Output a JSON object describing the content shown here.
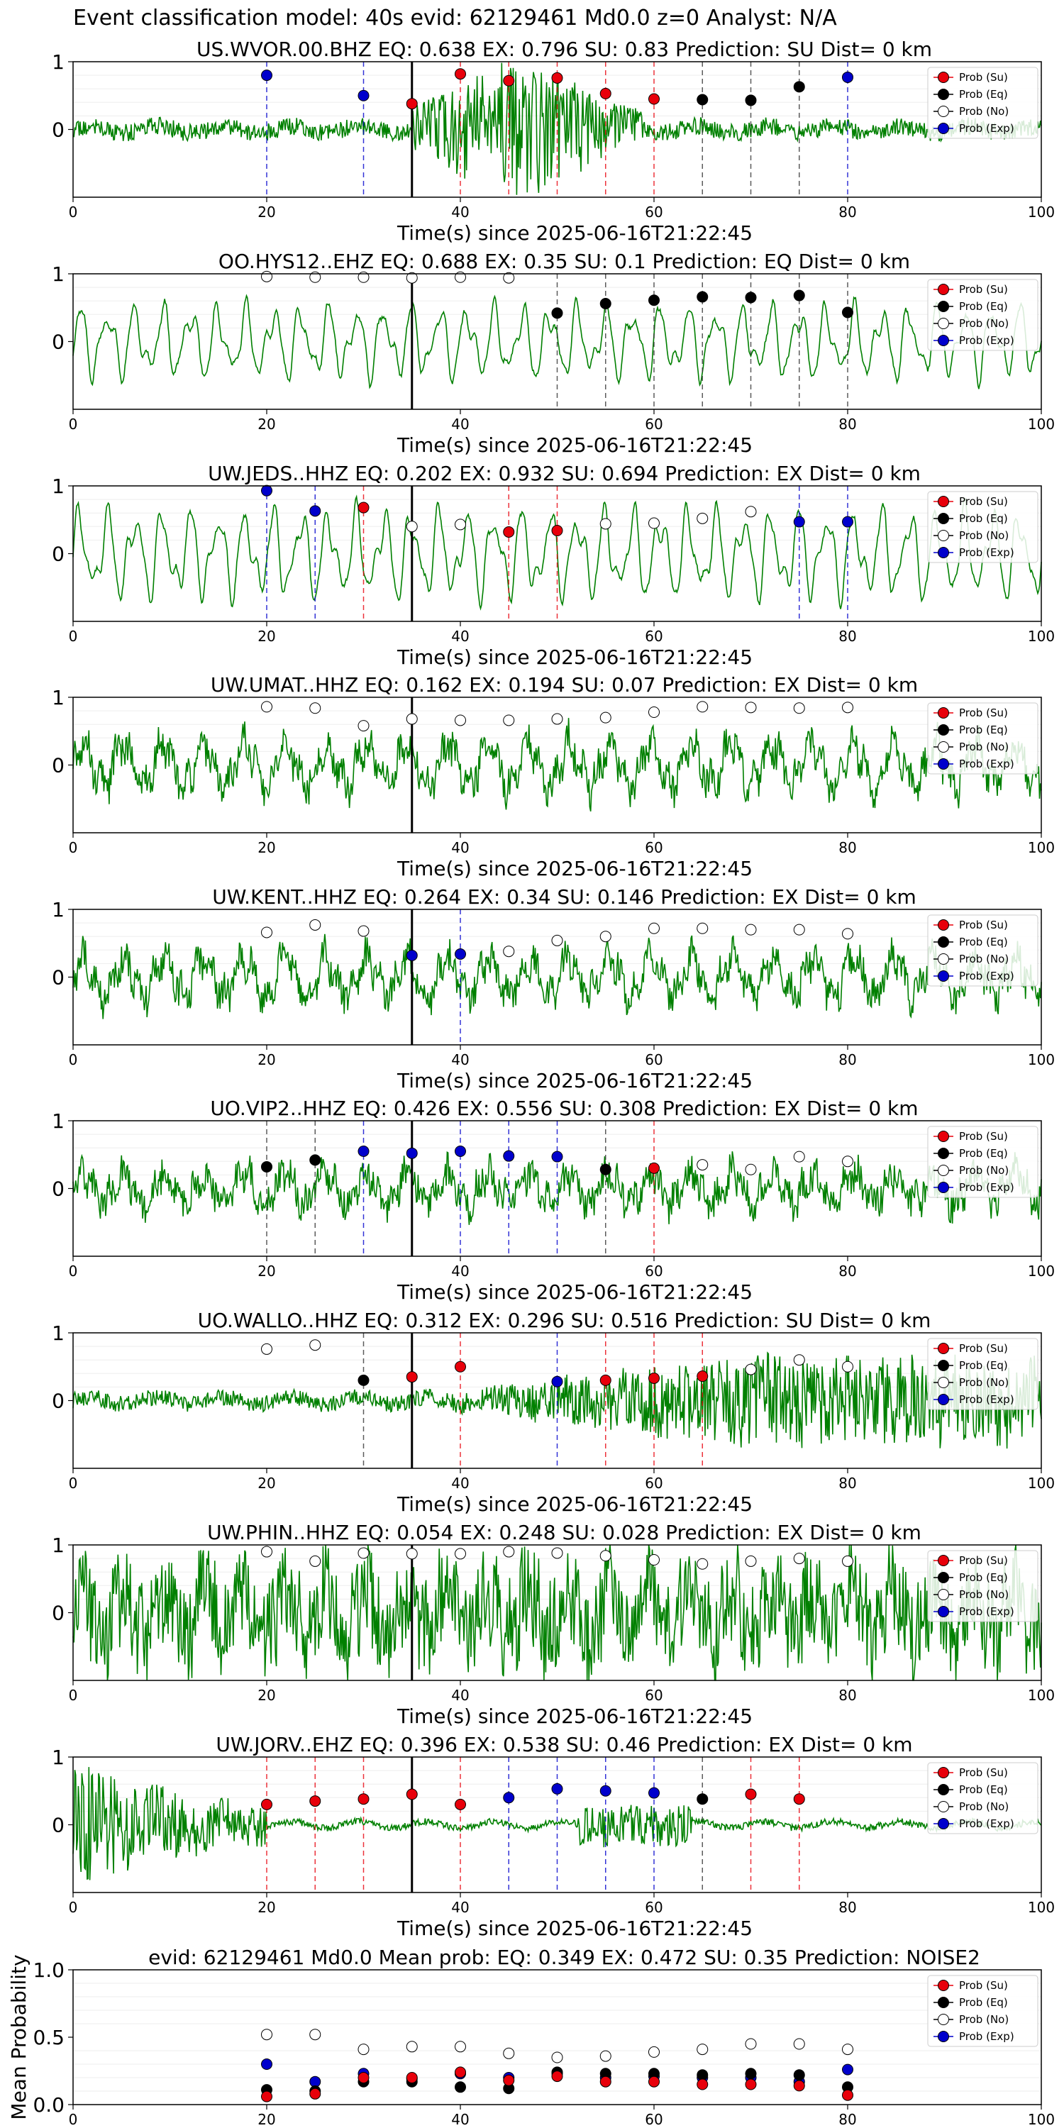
{
  "suptitle": "Event classification model: 40s evid: 62129461 Md0.0 z=0 Analyst: N/A",
  "xlabel": "Time(s) since 2025-06-16T21:22:45",
  "legend": [
    "Prob (Su)",
    "Prob (Eq)",
    "Prob (No)",
    "Prob (Exp)"
  ],
  "colors": {
    "su": "#e8000b",
    "eq": "#000000",
    "no": "#ffffff",
    "exp": "#0000cc",
    "waveform": "#008000"
  },
  "xticks": [
    "0",
    "20",
    "40",
    "60",
    "80",
    "100"
  ],
  "yticks": [
    "0",
    "1"
  ],
  "chart_data": [
    {
      "type": "line",
      "station": "US.WVOR.00.BHZ",
      "title": "US.WVOR.00.BHZ   EQ: 0.638  EX: 0.796  SU: 0.83   Prediction: SU    Dist= 0 km",
      "xlim": [
        0,
        100
      ],
      "ylim": [
        -1,
        1
      ],
      "noise": 0.13,
      "wtype": "burst",
      "points": [
        {
          "x": 20,
          "y": 0.8,
          "c": "exp"
        },
        {
          "x": 30,
          "y": 0.5,
          "c": "exp"
        },
        {
          "x": 35,
          "y": 0.38,
          "c": "su"
        },
        {
          "x": 40,
          "y": 0.82,
          "c": "su"
        },
        {
          "x": 45,
          "y": 0.72,
          "c": "su"
        },
        {
          "x": 50,
          "y": 0.76,
          "c": "su"
        },
        {
          "x": 55,
          "y": 0.53,
          "c": "su"
        },
        {
          "x": 60,
          "y": 0.45,
          "c": "su"
        },
        {
          "x": 65,
          "y": 0.44,
          "c": "eq"
        },
        {
          "x": 70,
          "y": 0.43,
          "c": "eq"
        },
        {
          "x": 75,
          "y": 0.63,
          "c": "eq"
        },
        {
          "x": 80,
          "y": 0.77,
          "c": "exp"
        }
      ]
    },
    {
      "type": "line",
      "station": "OO.HYS12..EHZ",
      "title": "OO.HYS12..EHZ   EQ: 0.688  EX: 0.35  SU: 0.1   Prediction: EQ    Dist= 0 km",
      "xlim": [
        0,
        100
      ],
      "ylim": [
        -1,
        1
      ],
      "noise": 0.45,
      "wtype": "smooth",
      "points": [
        {
          "x": 20,
          "y": 0.96,
          "c": "no"
        },
        {
          "x": 25,
          "y": 0.95,
          "c": "no"
        },
        {
          "x": 30,
          "y": 0.95,
          "c": "no"
        },
        {
          "x": 35,
          "y": 0.94,
          "c": "no"
        },
        {
          "x": 40,
          "y": 0.95,
          "c": "no"
        },
        {
          "x": 45,
          "y": 0.94,
          "c": "no"
        },
        {
          "x": 50,
          "y": 0.42,
          "c": "eq"
        },
        {
          "x": 55,
          "y": 0.56,
          "c": "eq"
        },
        {
          "x": 60,
          "y": 0.61,
          "c": "eq"
        },
        {
          "x": 65,
          "y": 0.66,
          "c": "eq"
        },
        {
          "x": 70,
          "y": 0.65,
          "c": "eq"
        },
        {
          "x": 75,
          "y": 0.68,
          "c": "eq"
        },
        {
          "x": 80,
          "y": 0.43,
          "c": "eq"
        }
      ]
    },
    {
      "type": "line",
      "station": "UW.JEDS..HHZ",
      "title": "UW.JEDS..HHZ   EQ: 0.202  EX: 0.932  SU: 0.694   Prediction: EX    Dist= 0 km",
      "xlim": [
        0,
        100
      ],
      "ylim": [
        -1,
        1
      ],
      "noise": 0.55,
      "wtype": "smooth",
      "points": [
        {
          "x": 20,
          "y": 0.93,
          "c": "exp"
        },
        {
          "x": 25,
          "y": 0.63,
          "c": "exp"
        },
        {
          "x": 30,
          "y": 0.68,
          "c": "su"
        },
        {
          "x": 35,
          "y": 0.4,
          "c": "no"
        },
        {
          "x": 40,
          "y": 0.43,
          "c": "no"
        },
        {
          "x": 45,
          "y": 0.32,
          "c": "su"
        },
        {
          "x": 50,
          "y": 0.34,
          "c": "su"
        },
        {
          "x": 55,
          "y": 0.44,
          "c": "no"
        },
        {
          "x": 60,
          "y": 0.45,
          "c": "no"
        },
        {
          "x": 65,
          "y": 0.52,
          "c": "no"
        },
        {
          "x": 70,
          "y": 0.62,
          "c": "no"
        },
        {
          "x": 75,
          "y": 0.47,
          "c": "exp"
        },
        {
          "x": 80,
          "y": 0.47,
          "c": "exp"
        }
      ]
    },
    {
      "type": "line",
      "station": "UW.UMAT..HHZ",
      "title": "UW.UMAT..HHZ   EQ: 0.162  EX: 0.194  SU: 0.07   Prediction: EX    Dist= 0 km",
      "xlim": [
        0,
        100
      ],
      "ylim": [
        -1,
        1
      ],
      "noise": 0.5,
      "wtype": "rough",
      "points": [
        {
          "x": 20,
          "y": 0.86,
          "c": "no"
        },
        {
          "x": 25,
          "y": 0.84,
          "c": "no"
        },
        {
          "x": 30,
          "y": 0.58,
          "c": "no"
        },
        {
          "x": 35,
          "y": 0.68,
          "c": "no"
        },
        {
          "x": 40,
          "y": 0.66,
          "c": "no"
        },
        {
          "x": 45,
          "y": 0.66,
          "c": "no"
        },
        {
          "x": 50,
          "y": 0.68,
          "c": "no"
        },
        {
          "x": 55,
          "y": 0.7,
          "c": "no"
        },
        {
          "x": 60,
          "y": 0.78,
          "c": "no"
        },
        {
          "x": 65,
          "y": 0.86,
          "c": "no"
        },
        {
          "x": 70,
          "y": 0.85,
          "c": "no"
        },
        {
          "x": 75,
          "y": 0.84,
          "c": "no"
        },
        {
          "x": 80,
          "y": 0.85,
          "c": "no"
        }
      ]
    },
    {
      "type": "line",
      "station": "UW.KENT..HHZ",
      "title": "UW.KENT..HHZ   EQ: 0.264  EX: 0.34  SU: 0.146   Prediction: EX    Dist= 0 km",
      "xlim": [
        0,
        100
      ],
      "ylim": [
        -1,
        1
      ],
      "noise": 0.45,
      "wtype": "rough",
      "points": [
        {
          "x": 20,
          "y": 0.66,
          "c": "no"
        },
        {
          "x": 25,
          "y": 0.77,
          "c": "no"
        },
        {
          "x": 30,
          "y": 0.68,
          "c": "no"
        },
        {
          "x": 35,
          "y": 0.32,
          "c": "exp"
        },
        {
          "x": 40,
          "y": 0.34,
          "c": "exp"
        },
        {
          "x": 45,
          "y": 0.38,
          "c": "no"
        },
        {
          "x": 50,
          "y": 0.54,
          "c": "no"
        },
        {
          "x": 55,
          "y": 0.6,
          "c": "no"
        },
        {
          "x": 60,
          "y": 0.72,
          "c": "no"
        },
        {
          "x": 65,
          "y": 0.72,
          "c": "no"
        },
        {
          "x": 70,
          "y": 0.7,
          "c": "no"
        },
        {
          "x": 75,
          "y": 0.7,
          "c": "no"
        },
        {
          "x": 80,
          "y": 0.64,
          "c": "no"
        }
      ]
    },
    {
      "type": "line",
      "station": "UO.VIP2..HHZ",
      "title": "UO.VIP2..HHZ   EQ: 0.426  EX: 0.556  SU: 0.308   Prediction: EX    Dist= 0 km",
      "xlim": [
        0,
        100
      ],
      "ylim": [
        -1,
        1
      ],
      "noise": 0.35,
      "wtype": "rough",
      "points": [
        {
          "x": 20,
          "y": 0.32,
          "c": "eq"
        },
        {
          "x": 25,
          "y": 0.42,
          "c": "eq"
        },
        {
          "x": 30,
          "y": 0.55,
          "c": "exp"
        },
        {
          "x": 35,
          "y": 0.52,
          "c": "exp"
        },
        {
          "x": 40,
          "y": 0.55,
          "c": "exp"
        },
        {
          "x": 45,
          "y": 0.48,
          "c": "exp"
        },
        {
          "x": 50,
          "y": 0.47,
          "c": "exp"
        },
        {
          "x": 55,
          "y": 0.28,
          "c": "eq"
        },
        {
          "x": 60,
          "y": 0.3,
          "c": "su"
        },
        {
          "x": 65,
          "y": 0.35,
          "c": "no"
        },
        {
          "x": 70,
          "y": 0.28,
          "c": "no"
        },
        {
          "x": 75,
          "y": 0.47,
          "c": "no"
        },
        {
          "x": 80,
          "y": 0.4,
          "c": "no"
        }
      ]
    },
    {
      "type": "line",
      "station": "UO.WALLO..HHZ",
      "title": "UO.WALLO..HHZ   EQ: 0.312  EX: 0.296  SU: 0.516   Prediction: SU    Dist= 0 km",
      "xlim": [
        0,
        100
      ],
      "ylim": [
        -1,
        1
      ],
      "noise": 0.12,
      "wtype": "growing",
      "points": [
        {
          "x": 20,
          "y": 0.76,
          "c": "no"
        },
        {
          "x": 25,
          "y": 0.82,
          "c": "no"
        },
        {
          "x": 30,
          "y": 0.3,
          "c": "eq"
        },
        {
          "x": 35,
          "y": 0.35,
          "c": "su"
        },
        {
          "x": 40,
          "y": 0.5,
          "c": "su"
        },
        {
          "x": 50,
          "y": 0.28,
          "c": "exp"
        },
        {
          "x": 55,
          "y": 0.3,
          "c": "su"
        },
        {
          "x": 60,
          "y": 0.33,
          "c": "su"
        },
        {
          "x": 65,
          "y": 0.36,
          "c": "su"
        },
        {
          "x": 70,
          "y": 0.46,
          "c": "no"
        },
        {
          "x": 75,
          "y": 0.6,
          "c": "no"
        },
        {
          "x": 80,
          "y": 0.5,
          "c": "no"
        }
      ]
    },
    {
      "type": "line",
      "station": "UW.PHIN..HHZ",
      "title": "UW.PHIN..HHZ   EQ: 0.054  EX: 0.248  SU: 0.028   Prediction: EX    Dist= 0 km",
      "xlim": [
        0,
        100
      ],
      "ylim": [
        -1,
        1
      ],
      "noise": 0.55,
      "wtype": "noisy",
      "points": [
        {
          "x": 20,
          "y": 0.9,
          "c": "no"
        },
        {
          "x": 25,
          "y": 0.76,
          "c": "no"
        },
        {
          "x": 30,
          "y": 0.88,
          "c": "no"
        },
        {
          "x": 35,
          "y": 0.87,
          "c": "no"
        },
        {
          "x": 40,
          "y": 0.87,
          "c": "no"
        },
        {
          "x": 45,
          "y": 0.9,
          "c": "no"
        },
        {
          "x": 50,
          "y": 0.88,
          "c": "no"
        },
        {
          "x": 55,
          "y": 0.84,
          "c": "no"
        },
        {
          "x": 60,
          "y": 0.78,
          "c": "no"
        },
        {
          "x": 65,
          "y": 0.72,
          "c": "no"
        },
        {
          "x": 70,
          "y": 0.76,
          "c": "no"
        },
        {
          "x": 75,
          "y": 0.8,
          "c": "no"
        },
        {
          "x": 80,
          "y": 0.76,
          "c": "no"
        }
      ]
    },
    {
      "type": "line",
      "station": "UW.JORV..EHZ",
      "title": "UW.JORV..EHZ   EQ: 0.396  EX: 0.538  SU: 0.46   Prediction: EX    Dist= 0 km",
      "xlim": [
        0,
        100
      ],
      "ylim": [
        -1,
        1
      ],
      "noise": 0.05,
      "wtype": "decay",
      "points": [
        {
          "x": 20,
          "y": 0.3,
          "c": "su"
        },
        {
          "x": 25,
          "y": 0.35,
          "c": "su"
        },
        {
          "x": 30,
          "y": 0.38,
          "c": "su"
        },
        {
          "x": 35,
          "y": 0.45,
          "c": "su"
        },
        {
          "x": 40,
          "y": 0.3,
          "c": "su"
        },
        {
          "x": 45,
          "y": 0.4,
          "c": "exp"
        },
        {
          "x": 50,
          "y": 0.53,
          "c": "exp"
        },
        {
          "x": 55,
          "y": 0.5,
          "c": "exp"
        },
        {
          "x": 60,
          "y": 0.47,
          "c": "exp"
        },
        {
          "x": 65,
          "y": 0.38,
          "c": "eq"
        },
        {
          "x": 70,
          "y": 0.45,
          "c": "su"
        },
        {
          "x": 75,
          "y": 0.38,
          "c": "su"
        }
      ]
    },
    {
      "type": "scatter",
      "title": "evid: 62129461  Md0.0   Mean prob:    EQ: 0.349  EX: 0.472  SU: 0.35   Prediction: NOISE2",
      "ylabel": "Mean Probability",
      "xlim": [
        0,
        100
      ],
      "ylim": [
        0,
        1
      ],
      "yticks": [
        "0.0",
        "0.5",
        "1.0"
      ],
      "x": [
        20,
        25,
        30,
        35,
        40,
        45,
        50,
        55,
        60,
        65,
        70,
        75,
        80
      ],
      "series": [
        {
          "name": "Prob (No)",
          "c": "no",
          "values": [
            0.52,
            0.52,
            0.41,
            0.43,
            0.43,
            0.38,
            0.35,
            0.36,
            0.39,
            0.41,
            0.45,
            0.45,
            0.41
          ]
        },
        {
          "name": "Prob (Exp)",
          "c": "exp",
          "values": [
            0.3,
            0.17,
            0.23,
            0.19,
            0.23,
            0.2,
            0.23,
            0.2,
            0.21,
            0.2,
            0.2,
            0.17,
            0.26
          ]
        },
        {
          "name": "Prob (Eq)",
          "c": "eq",
          "values": [
            0.11,
            0.1,
            0.17,
            0.17,
            0.13,
            0.12,
            0.24,
            0.23,
            0.23,
            0.22,
            0.23,
            0.22,
            0.13
          ]
        },
        {
          "name": "Prob (Su)",
          "c": "su",
          "values": [
            0.06,
            0.08,
            0.2,
            0.2,
            0.24,
            0.18,
            0.21,
            0.17,
            0.17,
            0.15,
            0.15,
            0.14,
            0.07
          ]
        }
      ]
    }
  ]
}
